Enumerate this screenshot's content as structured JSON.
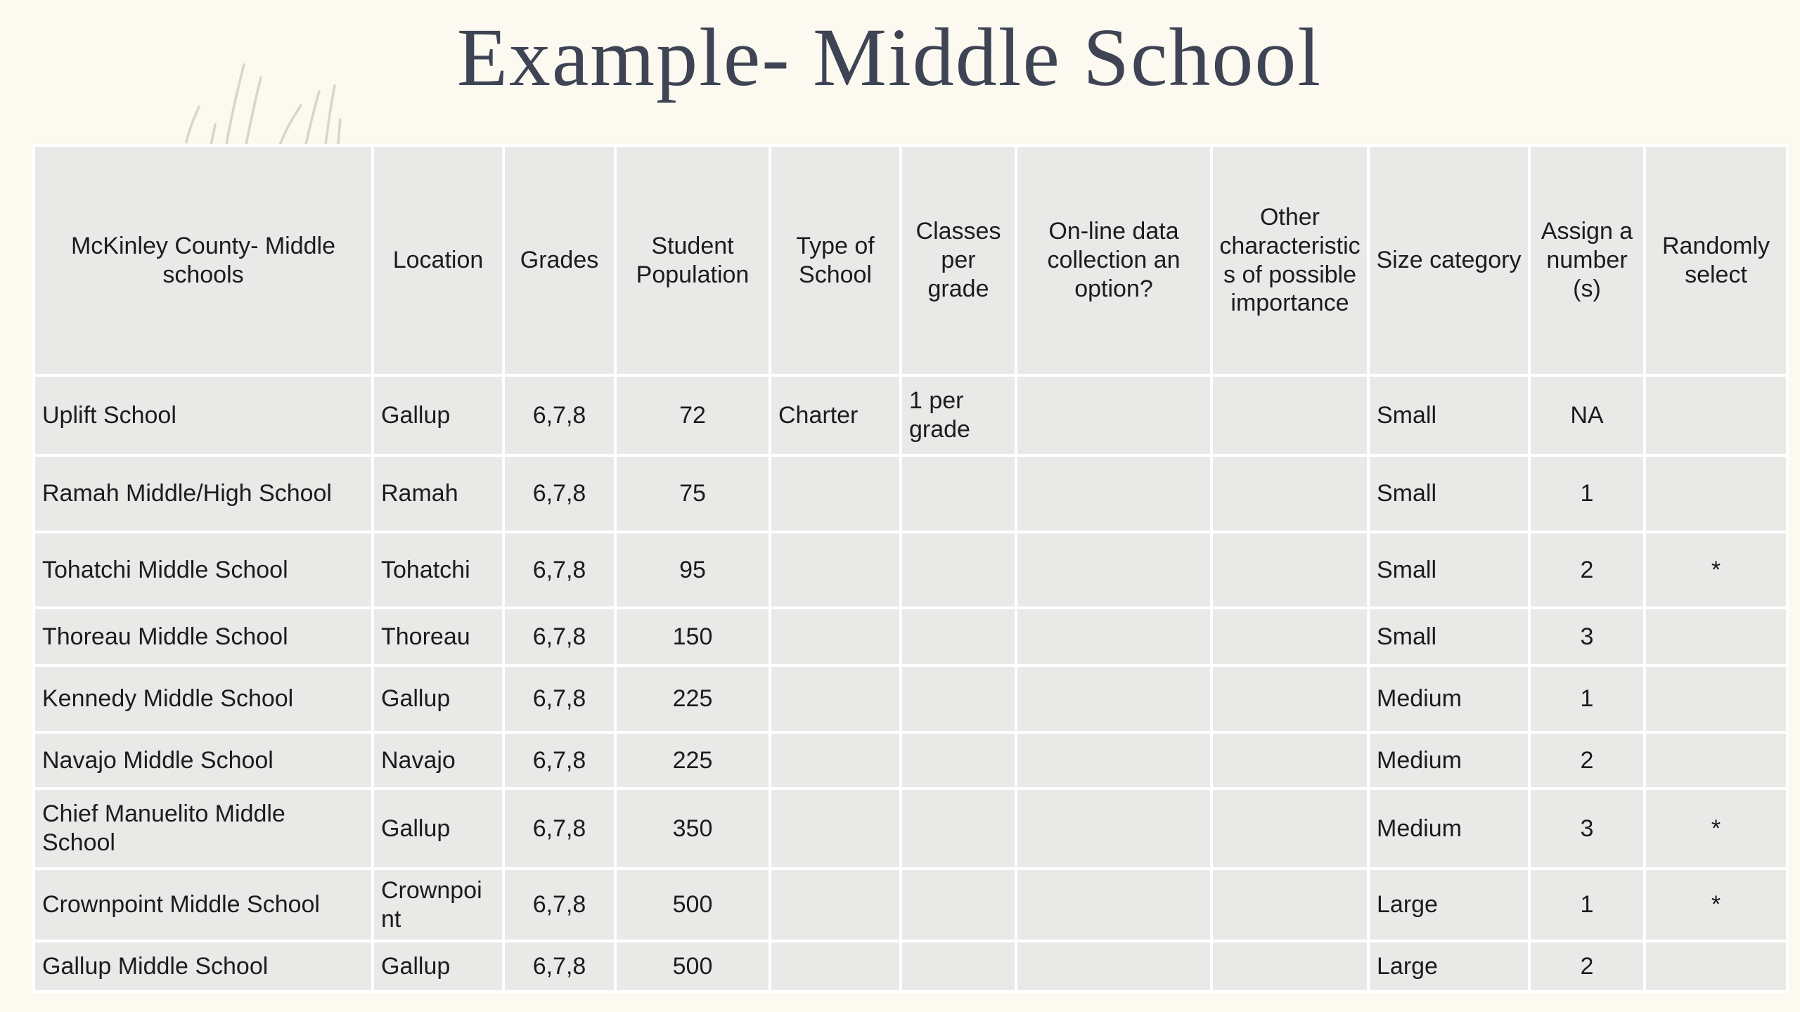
{
  "slide": {
    "title": "Example- Middle School"
  },
  "table": {
    "headers": [
      "McKinley County- Middle schools",
      "Location",
      "Grades",
      "Student Population",
      "Type of School",
      "Classes per grade",
      "On-line data collection an option?",
      "Other characteristics of possible importance",
      "Size category",
      "Assign a number (s)",
      "Randomly select"
    ],
    "rows": [
      [
        "Uplift School",
        "Gallup",
        "6,7,8",
        "72",
        "Charter",
        "1 per grade",
        "",
        "",
        "Small",
        "NA",
        ""
      ],
      [
        "Ramah Middle/High School",
        "Ramah",
        "6,7,8",
        "75",
        "",
        "",
        "",
        "",
        "Small",
        "1",
        ""
      ],
      [
        "Tohatchi Middle School",
        "Tohatchi",
        "6,7,8",
        "95",
        "",
        "",
        "",
        "",
        "Small",
        "2",
        "*"
      ],
      [
        "Thoreau Middle School",
        "Thoreau",
        "6,7,8",
        "150",
        "",
        "",
        "",
        "",
        "Small",
        "3",
        ""
      ],
      [
        "Kennedy Middle School",
        "Gallup",
        "6,7,8",
        "225",
        "",
        "",
        "",
        "",
        "Medium",
        "1",
        ""
      ],
      [
        "Navajo Middle School",
        "Navajo",
        "6,7,8",
        "225",
        "",
        "",
        "",
        "",
        "Medium",
        "2",
        ""
      ],
      [
        "Chief Manuelito Middle School",
        "Gallup",
        "6,7,8",
        "350",
        "",
        "",
        "",
        "",
        "Medium",
        "3",
        "*"
      ],
      [
        "Crownpoint Middle School",
        "Crownpoint",
        "6,7,8",
        "500",
        "",
        "",
        "",
        "",
        "Large",
        "1",
        "*"
      ],
      [
        "Gallup Middle School",
        "Gallup",
        "6,7,8",
        "500",
        "",
        "",
        "",
        "",
        "Large",
        "2",
        ""
      ]
    ]
  },
  "colors": {
    "background": "#fbf9f0",
    "cell_fill": "#e9e9e8",
    "grid_line": "#ffffff",
    "title_text": "#3e4453",
    "body_text": "#1c1c1c",
    "decor_stroke": "#d8d6c6"
  }
}
